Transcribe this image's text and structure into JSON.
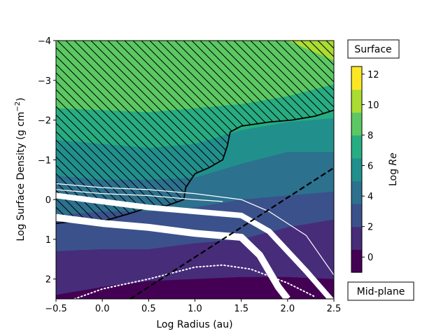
{
  "chart_data": {
    "type": "heatmap",
    "title": "",
    "xlabel": "Log Radius (au)",
    "ylabel": "Log Surface Density (g cm$^{-2}$)",
    "ylabel_parts": {
      "pre": "Log Surface Density (g cm",
      "sup": "−2",
      "post": ")"
    },
    "xlim": [
      -0.5,
      2.5
    ],
    "ylim": [
      2.5,
      -4
    ],
    "xticks": [
      -0.5,
      0.0,
      0.5,
      1.0,
      1.5,
      2.0,
      2.5
    ],
    "xtick_labels": [
      "−0.5",
      "0.0",
      "0.5",
      "1.0",
      "1.5",
      "2.0",
      "2.5"
    ],
    "yticks": [
      -4,
      -3,
      -2,
      -1,
      0,
      1,
      2
    ],
    "ytick_labels": [
      "−4",
      "−3",
      "−2",
      "−1",
      "0",
      "1",
      "2"
    ],
    "colorbar": {
      "label": "Log Re",
      "label_plain": "Log ",
      "label_italic": "Re",
      "ticks": [
        0,
        2,
        4,
        6,
        8,
        10,
        12
      ],
      "tick_labels": [
        "0",
        "2",
        "4",
        "6",
        "8",
        "10",
        "12"
      ],
      "range": [
        -1,
        12.5
      ],
      "levels": [
        -1,
        0.5,
        2,
        3.5,
        5,
        6.5,
        8,
        9.5,
        11,
        12.5
      ],
      "colors": [
        "#440154",
        "#472c7a",
        "#3b518b",
        "#2c718e",
        "#21908d",
        "#27ad81",
        "#5cc863",
        "#aadc32",
        "#fde725"
      ],
      "top_annotation": "Surface",
      "bottom_annotation": "Mid-plane"
    },
    "contour_fill_bands": [
      {
        "level": 0.5,
        "boundary": [
          [
            -0.5,
            2.4
          ],
          [
            0.0,
            2.2
          ],
          [
            0.5,
            2.05
          ],
          [
            1.0,
            2.0
          ],
          [
            1.5,
            1.95
          ],
          [
            2.0,
            1.95
          ],
          [
            2.5,
            2.0
          ]
        ]
      },
      {
        "level": 2,
        "boundary": [
          [
            -0.5,
            1.3
          ],
          [
            0.0,
            1.25
          ],
          [
            0.5,
            1.25
          ],
          [
            1.0,
            1.1
          ],
          [
            1.5,
            1.0
          ],
          [
            2.0,
            0.7
          ],
          [
            2.5,
            0.5
          ]
        ]
      },
      {
        "level": 3.5,
        "boundary": [
          [
            -0.5,
            0.4
          ],
          [
            0.0,
            0.3
          ],
          [
            0.5,
            0.3
          ],
          [
            1.0,
            0.2
          ],
          [
            1.5,
            0.0
          ],
          [
            2.0,
            -0.1
          ],
          [
            2.5,
            -0.2
          ]
        ]
      },
      {
        "level": 5,
        "boundary": [
          [
            -0.5,
            -0.6
          ],
          [
            0.0,
            -0.5
          ],
          [
            0.5,
            -0.5
          ],
          [
            1.0,
            -0.55
          ],
          [
            1.5,
            -0.9
          ],
          [
            2.0,
            -1.2
          ],
          [
            2.5,
            -1.2
          ]
        ]
      },
      {
        "level": 6.5,
        "boundary": [
          [
            -0.5,
            -1.5
          ],
          [
            0.0,
            -1.4
          ],
          [
            0.5,
            -1.3
          ],
          [
            1.0,
            -1.4
          ],
          [
            1.5,
            -1.75
          ],
          [
            2.0,
            -1.95
          ],
          [
            2.5,
            -2.05
          ]
        ]
      },
      {
        "level": 8,
        "boundary": [
          [
            -0.5,
            -2.3
          ],
          [
            0.0,
            -2.25
          ],
          [
            0.5,
            -2.2
          ],
          [
            1.0,
            -2.3
          ],
          [
            1.5,
            -2.4
          ],
          [
            2.0,
            -2.6
          ],
          [
            2.5,
            -2.9
          ]
        ]
      },
      {
        "level": 9.5,
        "boundary": [
          [
            -0.5,
            -4.2
          ],
          [
            1.5,
            -4.2
          ],
          [
            2.0,
            -4.0
          ],
          [
            2.2,
            -3.8
          ],
          [
            2.5,
            -3.5
          ]
        ]
      },
      {
        "level": 11,
        "boundary": [
          [
            -0.5,
            -3.95
          ],
          [
            -0.45,
            -4.05
          ]
        ]
      }
    ],
    "hatched_region_boundary": [
      [
        -0.5,
        0.6
      ],
      [
        -0.3,
        0.55
      ],
      [
        0.0,
        0.55
      ],
      [
        0.3,
        0.35
      ],
      [
        0.5,
        0.2
      ],
      [
        0.7,
        0.15
      ],
      [
        0.88,
        0.0
      ],
      [
        0.9,
        -0.3
      ],
      [
        1.0,
        -0.65
      ],
      [
        1.15,
        -0.8
      ],
      [
        1.3,
        -1.0
      ],
      [
        1.35,
        -1.35
      ],
      [
        1.38,
        -1.7
      ],
      [
        1.5,
        -1.85
      ],
      [
        1.8,
        -1.95
      ],
      [
        2.05,
        -2.0
      ],
      [
        2.3,
        -2.1
      ],
      [
        2.5,
        -2.25
      ]
    ],
    "series": [
      {
        "name": "thick-white-upper",
        "points": [
          [
            -0.5,
            -0.1
          ],
          [
            0.0,
            0.05
          ],
          [
            0.5,
            0.2
          ],
          [
            1.0,
            0.3
          ],
          [
            1.5,
            0.4
          ],
          [
            1.8,
            0.8
          ],
          [
            2.2,
            1.8
          ],
          [
            2.5,
            2.6
          ]
        ]
      },
      {
        "name": "thick-white-lower",
        "points": [
          [
            -0.5,
            0.45
          ],
          [
            0.0,
            0.6
          ],
          [
            0.5,
            0.7
          ],
          [
            1.0,
            0.85
          ],
          [
            1.5,
            0.95
          ],
          [
            1.7,
            1.4
          ],
          [
            1.9,
            2.2
          ],
          [
            2.0,
            2.5
          ]
        ]
      },
      {
        "name": "thin-white",
        "points": [
          [
            -0.5,
            -0.4
          ],
          [
            0.0,
            -0.3
          ],
          [
            0.5,
            -0.25
          ],
          [
            1.0,
            -0.15
          ],
          [
            1.5,
            0.0
          ],
          [
            1.8,
            0.3
          ],
          [
            2.2,
            0.9
          ],
          [
            2.5,
            1.9
          ]
        ]
      },
      {
        "name": "thin-white-in-hatch",
        "points": [
          [
            -0.5,
            -0.25
          ],
          [
            0.0,
            -0.15
          ],
          [
            0.5,
            -0.1
          ],
          [
            1.0,
            0.0
          ],
          [
            1.3,
            0.05
          ]
        ]
      },
      {
        "name": "dotted-white",
        "points": [
          [
            -0.3,
            2.5
          ],
          [
            0.0,
            2.25
          ],
          [
            0.5,
            2.0
          ],
          [
            1.0,
            1.7
          ],
          [
            1.3,
            1.65
          ],
          [
            1.6,
            1.75
          ],
          [
            2.0,
            2.1
          ],
          [
            2.3,
            2.45
          ]
        ]
      },
      {
        "name": "dashed-black",
        "points": [
          [
            0.3,
            2.5
          ],
          [
            2.5,
            -0.8
          ]
        ]
      }
    ]
  }
}
